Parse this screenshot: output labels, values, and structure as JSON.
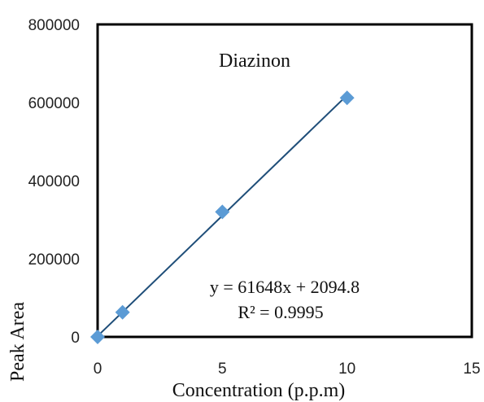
{
  "chart_data": {
    "type": "scatter",
    "title": "Diazinon",
    "xlabel": "Concentration (p.p.m)",
    "ylabel": "Peak Area",
    "xlim": [
      0,
      15
    ],
    "ylim": [
      0,
      800000
    ],
    "x_ticks": [
      "0",
      "5",
      "10",
      "15"
    ],
    "y_ticks": [
      "0",
      "200000",
      "400000",
      "600000",
      "800000"
    ],
    "grid": false,
    "legend": "none",
    "series": [
      {
        "x": [
          0,
          1,
          5,
          10
        ],
        "y": [
          0,
          63000,
          320000,
          612000
        ],
        "marker": "diamond",
        "color": "#5b9bd5"
      }
    ],
    "trendline": {
      "slope": 61648,
      "intercept": 2094.8,
      "color": "#1f4e79",
      "equation": "y = 61648x + 2094.8",
      "r_squared": "R² = 0.9995"
    }
  }
}
